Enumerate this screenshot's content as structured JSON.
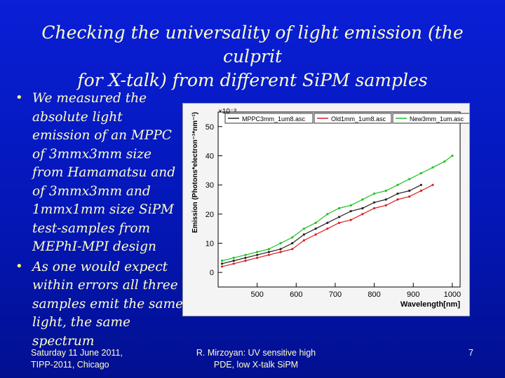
{
  "slide": {
    "title_line1": "Checking the universality of light emission (the culprit",
    "title_line2": "for X-talk) from different SiPM samples",
    "bullet1": "We measured the absolute light emission of an MPPC of 3mmx3mm size from Hamamatsu and of 3mmx3mm and 1mmx1mm size SiPM test-samples from MEPhI-MPI design",
    "bullet2": "As one would expect within errors all three samples emit the same light, the same spectrum",
    "bullet_glyph": "•"
  },
  "chart_data": {
    "type": "line",
    "xlabel": "Wavelength[nm]",
    "ylabel": "Emission (Photons*electron⁻¹*nm⁻¹)",
    "y_exponent_label": "×10⁻⁹",
    "xlim": [
      400,
      1020
    ],
    "ylim": [
      -5,
      55
    ],
    "x_ticks": [
      500,
      600,
      700,
      800,
      900,
      1000
    ],
    "y_ticks": [
      0,
      10,
      20,
      30,
      40,
      50
    ],
    "legend_position": "top",
    "series": [
      {
        "name": "MPPC3mm_1um8.asc",
        "color": "#222222",
        "x": [
          410,
          440,
          470,
          500,
          530,
          560,
          590,
          620,
          650,
          680,
          710,
          740,
          770,
          800,
          830,
          860,
          890,
          920
        ],
        "y": [
          3,
          4,
          5,
          6,
          7,
          8,
          10,
          13,
          15,
          17,
          19,
          21,
          22,
          24,
          25,
          27,
          28,
          30
        ]
      },
      {
        "name": "Old1mm_1um8.asc",
        "color": "#d42020",
        "x": [
          410,
          440,
          470,
          500,
          530,
          560,
          590,
          620,
          650,
          680,
          710,
          740,
          770,
          800,
          830,
          860,
          890,
          920,
          950
        ],
        "y": [
          2,
          3,
          4,
          5,
          6,
          7,
          8,
          11,
          13,
          15,
          17,
          18,
          20,
          22,
          23,
          25,
          26,
          28,
          30
        ]
      },
      {
        "name": "New3mm_1um.asc",
        "color": "#20c020",
        "x": [
          410,
          440,
          470,
          500,
          530,
          560,
          590,
          620,
          650,
          680,
          710,
          740,
          770,
          800,
          830,
          860,
          890,
          920,
          950,
          980,
          1000
        ],
        "y": [
          4,
          5,
          6,
          7,
          8,
          10,
          12,
          15,
          17,
          20,
          22,
          23,
          25,
          27,
          28,
          30,
          32,
          34,
          36,
          38,
          40
        ]
      }
    ]
  },
  "footer": {
    "left_line1": "Saturday 11 June 2011,",
    "left_line2": "TIPP-2011, Chicago",
    "mid_line1": "R. Mirzoyan: UV sensitive high",
    "mid_line2": "PDE, low X-talk SiPM",
    "page_number": "7"
  }
}
